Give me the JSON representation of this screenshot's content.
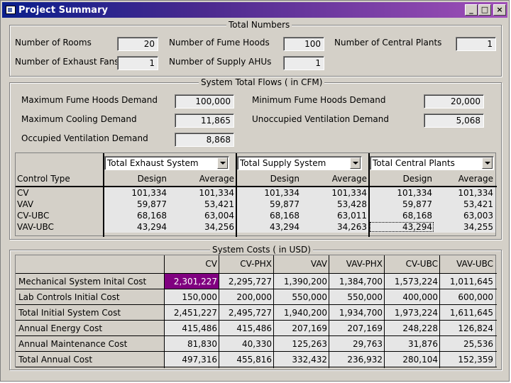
{
  "window": {
    "title": "Project Summary",
    "minimize_label": "_",
    "maximize_label": "□",
    "close_label": "×"
  },
  "totals": {
    "title": "Total Numbers",
    "rooms": {
      "label": "Number of Rooms",
      "value": "20"
    },
    "fume_hoods": {
      "label": "Number of Fume Hoods",
      "value": "100"
    },
    "central_plants": {
      "label": "Number of Central Plants",
      "value": "1"
    },
    "exhaust_fans": {
      "label": "Number of Exhaust Fans",
      "value": "1"
    },
    "supply_ahus": {
      "label": "Number of Supply AHUs",
      "value": "1"
    }
  },
  "flows": {
    "title": "System Total Flows ( in CFM)",
    "max_fume": {
      "label": "Maximum Fume Hoods Demand",
      "value": "100,000"
    },
    "min_fume": {
      "label": "Minimum Fume Hoods Demand",
      "value": "20,000"
    },
    "max_cooling": {
      "label": "Maximum Cooling Demand",
      "value": "11,865"
    },
    "unoccupied": {
      "label": "Unoccupied Ventilation Demand",
      "value": "5,068"
    },
    "occupied": {
      "label": "Occupied Ventilation Demand",
      "value": "8,868"
    },
    "selects": [
      "Total Exhaust System",
      "Total Supply System",
      "Total Central Plants"
    ],
    "col_header": "Control Type",
    "sub_headers": [
      "Design",
      "Average",
      "Design",
      "Average",
      "Design",
      "Average"
    ],
    "rows": [
      {
        "type": "CV",
        "vals": [
          "101,334",
          "101,334",
          "101,334",
          "101,334",
          "101,334",
          "101,334"
        ]
      },
      {
        "type": "VAV",
        "vals": [
          "59,877",
          "53,421",
          "59,877",
          "53,428",
          "59,877",
          "53,421"
        ]
      },
      {
        "type": "CV-UBC",
        "vals": [
          "68,168",
          "63,004",
          "68,168",
          "63,011",
          "68,168",
          "63,003"
        ]
      },
      {
        "type": "VAV-UBC",
        "vals": [
          "43,294",
          "34,256",
          "43,294",
          "34,263",
          "43,294",
          "34,255"
        ]
      }
    ]
  },
  "costs": {
    "title": "System Costs ( in USD)",
    "headers": [
      "CV",
      "CV-PHX",
      "VAV",
      "VAV-PHX",
      "CV-UBC",
      "VAV-UBC"
    ],
    "rows": [
      {
        "label": "Mechanical System Inital Cost",
        "vals": [
          "2,301,227",
          "2,295,727",
          "1,390,200",
          "1,384,700",
          "1,573,224",
          "1,011,645"
        ]
      },
      {
        "label": "Lab Controls Initial Cost",
        "vals": [
          "150,000",
          "200,000",
          "550,000",
          "550,000",
          "400,000",
          "600,000"
        ]
      },
      {
        "label": "Total Initial System Cost",
        "vals": [
          "2,451,227",
          "2,495,727",
          "1,940,200",
          "1,934,700",
          "1,973,224",
          "1,611,645"
        ]
      },
      {
        "label": "Annual Energy Cost",
        "vals": [
          "415,486",
          "415,486",
          "207,169",
          "207,169",
          "248,228",
          "126,824"
        ]
      },
      {
        "label": "Annual Maintenance Cost",
        "vals": [
          "81,830",
          "40,330",
          "125,263",
          "29,763",
          "31,876",
          "25,536"
        ]
      },
      {
        "label": "Total Annual Cost",
        "vals": [
          "497,316",
          "455,816",
          "332,432",
          "236,932",
          "280,104",
          "152,359"
        ]
      }
    ]
  }
}
